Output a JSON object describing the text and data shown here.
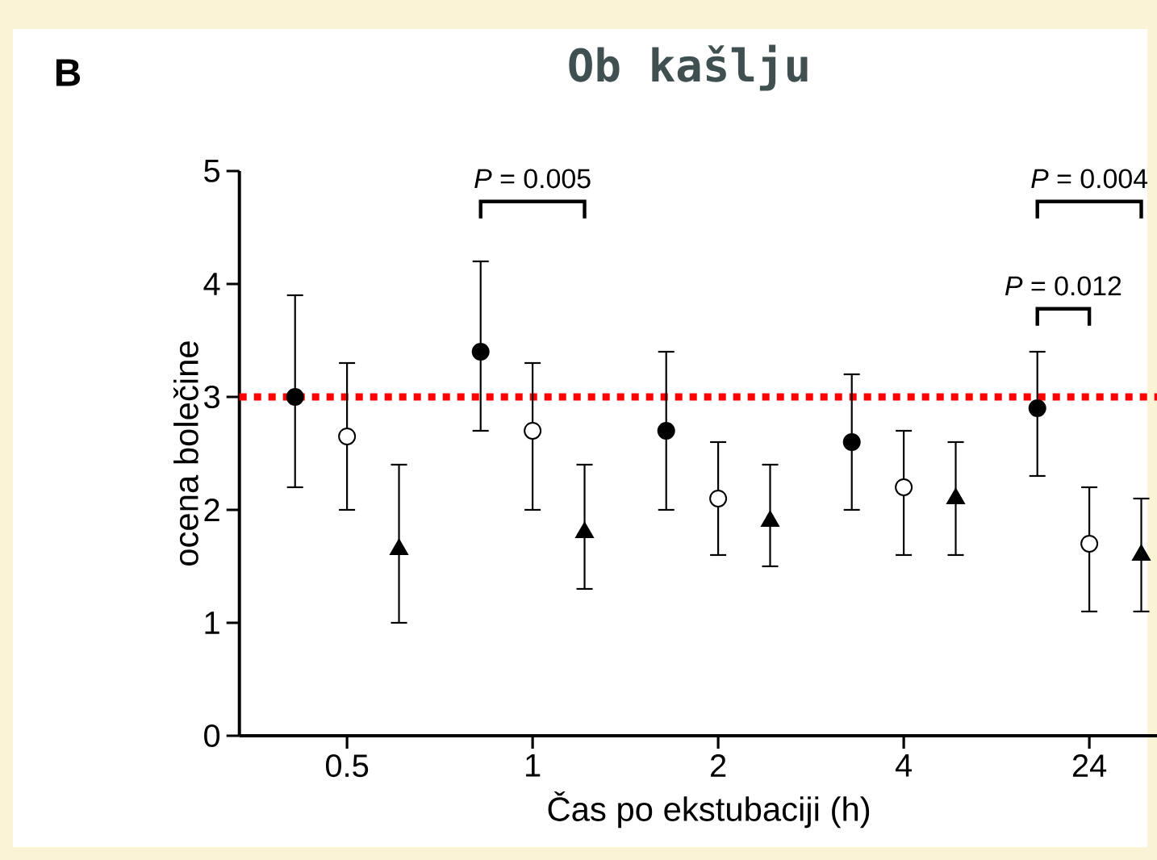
{
  "chart_data": {
    "type": "scatter",
    "title": "Ob kašlju",
    "xlabel": "Čas po ekstubaciji (h)",
    "ylabel": "ocena bolečine",
    "categories": [
      "0.5",
      "1",
      "2",
      "4",
      "24"
    ],
    "ylim": [
      0,
      5
    ],
    "yticks": [
      0,
      1,
      2,
      3,
      4,
      5
    ],
    "series": [
      {
        "color": "#000000",
        "marker": "circle",
        "values": [
          3.0,
          3.4,
          2.7,
          2.6,
          2.9
        ],
        "errors": [
          [
            2.2,
            3.9
          ],
          [
            2.7,
            4.2
          ],
          [
            2.0,
            3.4
          ],
          [
            2.0,
            3.2
          ],
          [
            2.3,
            3.4
          ]
        ]
      },
      {
        "color": "#ffffff",
        "marker": "circle",
        "values": [
          2.65,
          2.7,
          2.1,
          2.2,
          1.7
        ],
        "errors": [
          [
            2.0,
            3.3
          ],
          [
            2.0,
            3.3
          ],
          [
            1.6,
            2.6
          ],
          [
            1.6,
            2.7
          ],
          [
            1.1,
            2.2
          ]
        ]
      },
      {
        "color": "#000000",
        "marker": "triangle",
        "values": [
          1.65,
          1.8,
          1.9,
          2.1,
          1.6
        ],
        "errors": [
          [
            1.0,
            2.4
          ],
          [
            1.3,
            2.4
          ],
          [
            1.5,
            2.4
          ],
          [
            1.6,
            2.6
          ],
          [
            1.1,
            2.1
          ]
        ]
      }
    ],
    "ref_lines": [
      {
        "axis": "y",
        "value": 3,
        "color": "#ff0000",
        "line_style": "dotted"
      }
    ],
    "annotations": [
      "B",
      "*P* = 0.005",
      "*P* = 0.004",
      "*P* = 0.012"
    ]
  }
}
